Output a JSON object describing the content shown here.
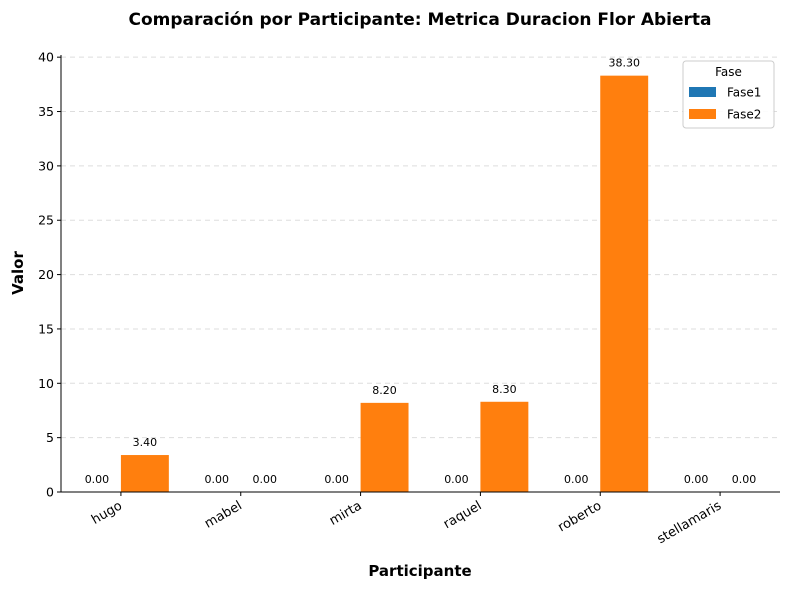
{
  "chart_data": {
    "type": "bar",
    "title": "Comparación por Participante: Metrica Duracion Flor Abierta",
    "xlabel": "Participante",
    "ylabel": "Valor",
    "categories": [
      "hugo",
      "mabel",
      "mirta",
      "raquel",
      "roberto",
      "stellamaris"
    ],
    "series": [
      {
        "name": "Fase1",
        "color": "#1f77b4",
        "values": [
          0.0,
          0.0,
          0.0,
          0.0,
          0.0,
          0.0
        ]
      },
      {
        "name": "Fase2",
        "color": "#ff7f0e",
        "values": [
          3.4,
          0.0,
          8.2,
          8.3,
          38.3,
          0.0
        ]
      }
    ],
    "value_labels": [
      [
        "0.00",
        "0.00",
        "0.00",
        "0.00",
        "0.00",
        "0.00"
      ],
      [
        "3.40",
        "0.00",
        "8.20",
        "8.30",
        "38.30",
        "0.00"
      ]
    ],
    "ylim": [
      0,
      40.2
    ],
    "yticks": [
      0,
      5,
      10,
      15,
      20,
      25,
      30,
      35,
      40
    ],
    "grid": "y-dashed",
    "legend": {
      "title": "Fase",
      "placement": "top-right"
    }
  }
}
